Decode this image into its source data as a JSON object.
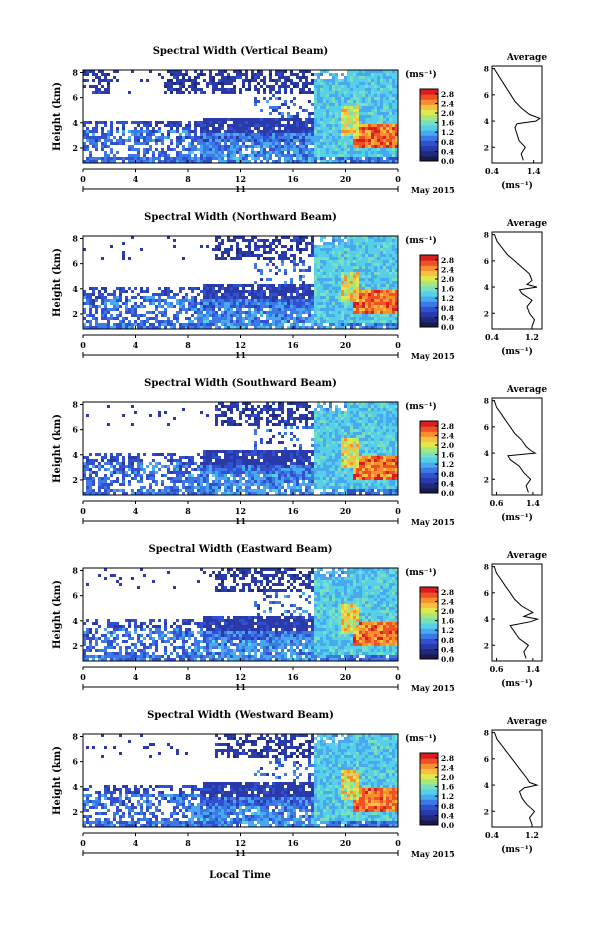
{
  "figure": {
    "date_label": "May 2015",
    "day_label": "11",
    "colorbar_unit": "(ms⁻¹)",
    "average_title": "Average",
    "average_unit": "(ms⁻¹)",
    "height_axis_label": "Height (km)",
    "time_axis_label": "Local Time"
  },
  "colors": {
    "white": "#ffffff",
    "colormap": [
      "#1a1a4e",
      "#1e2a7a",
      "#2a3aa8",
      "#3050d0",
      "#3c78e6",
      "#48a8f0",
      "#56d0e8",
      "#78e0c0",
      "#a8e878",
      "#e0e850",
      "#f8c040",
      "#f89030",
      "#f05028",
      "#d81e1e"
    ]
  },
  "chart_data": [
    {
      "type": "heatmap",
      "title": "Spectral Width (Vertical Beam)",
      "x_ticks": [
        "0",
        "4",
        "8",
        "12",
        "16",
        "20",
        "0"
      ],
      "xlim": [
        0,
        24
      ],
      "y_ticks": [
        "2",
        "4",
        "6",
        "8"
      ],
      "ylim": [
        0.8,
        8.2
      ],
      "colorbar_ticks": [
        "0.0",
        "0.4",
        "0.8",
        "1.2",
        "1.6",
        "2.0",
        "2.4",
        "2.8"
      ],
      "colorbar_range": [
        0.0,
        3.0
      ],
      "average_profile": {
        "x_ticks": [
          "0.4",
          "1.4"
        ],
        "xlim": [
          0.4,
          1.6
        ],
        "y_ticks": [
          "2",
          "4",
          "6",
          "8"
        ],
        "heights": [
          1.0,
          1.5,
          2.0,
          2.5,
          3.0,
          3.5,
          3.8,
          4.0,
          4.2,
          4.5,
          5.0,
          5.5,
          6.0,
          6.5,
          7.0,
          7.5,
          8.0
        ],
        "values": [
          1.15,
          1.1,
          1.2,
          1.05,
          1.0,
          0.95,
          1.0,
          1.45,
          1.55,
          1.3,
          1.1,
          0.95,
          0.85,
          0.75,
          0.65,
          0.55,
          0.45
        ]
      }
    },
    {
      "type": "heatmap",
      "title": "Spectral Width (Northward Beam)",
      "x_ticks": [
        "0",
        "4",
        "8",
        "12",
        "16",
        "20",
        "0"
      ],
      "xlim": [
        0,
        24
      ],
      "y_ticks": [
        "2",
        "4",
        "6",
        "8"
      ],
      "ylim": [
        0.8,
        8.2
      ],
      "colorbar_ticks": [
        "0.0",
        "0.4",
        "0.8",
        "1.2",
        "1.6",
        "2.0",
        "2.4",
        "2.8"
      ],
      "colorbar_range": [
        0.0,
        3.0
      ],
      "average_profile": {
        "x_ticks": [
          "0.4",
          "1.2"
        ],
        "xlim": [
          0.4,
          1.4
        ],
        "heights": [
          1.0,
          1.5,
          2.0,
          2.5,
          3.0,
          3.5,
          3.8,
          4.0,
          4.2,
          4.5,
          5.0,
          5.5,
          6.0,
          6.5,
          7.0,
          7.5,
          8.0
        ],
        "values": [
          1.2,
          1.25,
          1.15,
          1.1,
          1.2,
          1.0,
          0.95,
          1.3,
          1.1,
          1.2,
          1.15,
          1.0,
          0.85,
          0.7,
          0.6,
          0.5,
          0.45
        ]
      }
    },
    {
      "type": "heatmap",
      "title": "Spectral Width (Southward Beam)",
      "x_ticks": [
        "0",
        "4",
        "8",
        "12",
        "16",
        "20",
        "0"
      ],
      "xlim": [
        0,
        24
      ],
      "y_ticks": [
        "2",
        "4",
        "6",
        "8"
      ],
      "ylim": [
        0.8,
        8.2
      ],
      "colorbar_ticks": [
        "0.0",
        "0.4",
        "0.8",
        "1.2",
        "1.6",
        "2.0",
        "2.4",
        "2.8"
      ],
      "colorbar_range": [
        0.0,
        3.0
      ],
      "average_profile": {
        "x_ticks": [
          "0.6",
          "1.4"
        ],
        "xlim": [
          0.5,
          1.6
        ],
        "heights": [
          1.0,
          1.5,
          2.0,
          2.5,
          3.0,
          3.5,
          3.8,
          4.0,
          4.2,
          4.5,
          5.0,
          5.5,
          6.0,
          6.5,
          7.0,
          7.5,
          8.0
        ],
        "values": [
          1.3,
          1.25,
          1.35,
          1.2,
          1.1,
          0.9,
          0.85,
          1.45,
          1.35,
          1.25,
          1.15,
          1.0,
          0.9,
          0.8,
          0.7,
          0.6,
          0.55
        ]
      }
    },
    {
      "type": "heatmap",
      "title": "Spectral Width (Eastward Beam)",
      "x_ticks": [
        "0",
        "4",
        "8",
        "12",
        "16",
        "20",
        "0"
      ],
      "xlim": [
        0,
        24
      ],
      "y_ticks": [
        "2",
        "4",
        "6",
        "8"
      ],
      "ylim": [
        0.8,
        8.2
      ],
      "colorbar_ticks": [
        "0.0",
        "0.4",
        "0.8",
        "1.2",
        "1.6",
        "2.0",
        "2.4",
        "2.8"
      ],
      "colorbar_range": [
        0.0,
        3.0
      ],
      "average_profile": {
        "x_ticks": [
          "0.6",
          "1.4"
        ],
        "xlim": [
          0.5,
          1.6
        ],
        "heights": [
          1.0,
          1.5,
          2.0,
          2.5,
          3.0,
          3.5,
          3.8,
          4.0,
          4.2,
          4.5,
          5.0,
          5.5,
          6.0,
          6.5,
          7.0,
          7.5,
          8.0
        ],
        "values": [
          1.25,
          1.2,
          1.3,
          1.1,
          1.0,
          0.9,
          1.35,
          1.5,
          1.2,
          1.4,
          1.15,
          1.0,
          0.9,
          0.8,
          0.7,
          0.6,
          0.55
        ]
      }
    },
    {
      "type": "heatmap",
      "title": "Spectral Width (Westward Beam)",
      "x_ticks": [
        "0",
        "4",
        "8",
        "12",
        "16",
        "20",
        "0"
      ],
      "xlim": [
        0,
        24
      ],
      "y_ticks": [
        "2",
        "4",
        "6",
        "8"
      ],
      "ylim": [
        0.8,
        8.2
      ],
      "colorbar_ticks": [
        "0.0",
        "0.4",
        "0.8",
        "1.2",
        "1.6",
        "2.0",
        "2.4",
        "2.8"
      ],
      "colorbar_range": [
        0.0,
        3.0
      ],
      "average_profile": {
        "x_ticks": [
          "0.4",
          "1.2"
        ],
        "xlim": [
          0.4,
          1.4
        ],
        "heights": [
          1.0,
          1.5,
          2.0,
          2.5,
          3.0,
          3.5,
          3.8,
          4.0,
          4.2,
          4.5,
          5.0,
          5.5,
          6.0,
          6.5,
          7.0,
          7.5,
          8.0
        ],
        "values": [
          1.2,
          1.15,
          1.25,
          1.1,
          1.0,
          0.95,
          1.05,
          1.3,
          1.15,
          1.1,
          1.0,
          0.9,
          0.8,
          0.7,
          0.6,
          0.5,
          0.45
        ]
      }
    }
  ]
}
